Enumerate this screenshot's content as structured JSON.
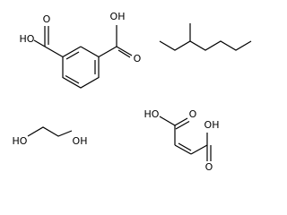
{
  "molecules": [
    {
      "labels": [
        "HO",
        "O",
        "OH",
        "O"
      ]
    },
    {
      "labels": [
        "HO",
        "OH"
      ]
    },
    {
      "labels": [
        "HO",
        "O",
        "OH",
        "O"
      ]
    }
  ]
}
